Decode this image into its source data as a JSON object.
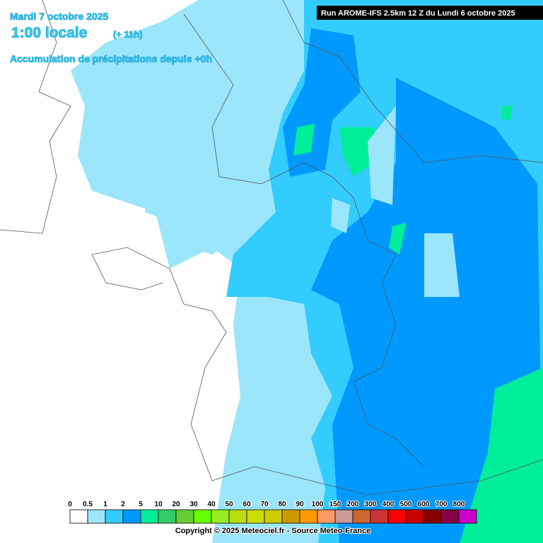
{
  "header": {
    "date": "Mardi 7 octobre 2025",
    "time": "1:00 locale",
    "offset": "(+ 11h)",
    "subtitle": "Accumulation de précipitations depuis +0h",
    "run": "Run AROME-IFS 2.5km 12 Z du Lundi 6 octobre 2025"
  },
  "legend": {
    "labels": [
      "0",
      "0.5",
      "1",
      "2",
      "5",
      "10",
      "20",
      "30",
      "40",
      "50",
      "60",
      "70",
      "80",
      "90",
      "100",
      "150",
      "200",
      "300",
      "400",
      "500",
      "600",
      "700",
      "800"
    ],
    "colors": [
      "#ffffff",
      "#9be6fb",
      "#33ccff",
      "#0099ff",
      "#00ee99",
      "#33cc66",
      "#66cc33",
      "#66ff00",
      "#99ee22",
      "#bbdd11",
      "#ccdd00",
      "#cccc00",
      "#cc9900",
      "#ff9900",
      "#ff9966",
      "#cc9999",
      "#cc6633",
      "#cc3333",
      "#ff0000",
      "#cc0000",
      "#880000",
      "#880044",
      "#cc00cc"
    ]
  },
  "footer": {
    "copyright": "Copyright © 2025 Meteociel.fr - Source Meteo-France"
  }
}
